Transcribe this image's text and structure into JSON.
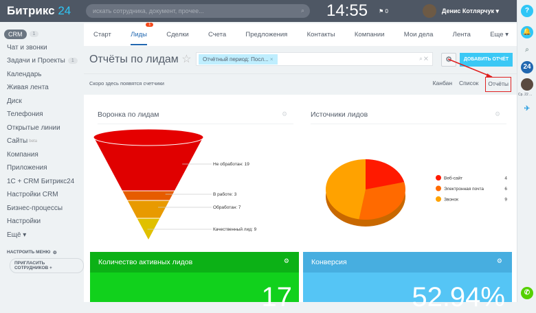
{
  "topbar": {
    "logo_main": "Битрикс",
    "logo_num": "24",
    "search_placeholder": "искать сотрудника, документ, прочее...",
    "time": "14:55",
    "flag_count": "0",
    "user": "Денис Котлярчук ▾"
  },
  "rightbar": {
    "help": "?",
    "b24": "24",
    "date": "Ср. 22 ..."
  },
  "sidebar": {
    "crm": "CRM",
    "crm_badge": "1",
    "items": [
      {
        "label": "Чат и звонки"
      },
      {
        "label": "Задачи и Проекты",
        "badge": "1"
      },
      {
        "label": "Календарь"
      },
      {
        "label": "Живая лента"
      },
      {
        "label": "Диск"
      },
      {
        "label": "Телефония"
      },
      {
        "label": "Открытые линии"
      },
      {
        "label": "Сайты",
        "sup": "beta"
      },
      {
        "label": "Компания"
      },
      {
        "label": "Приложения"
      },
      {
        "label": "1С + CRM Битрикс24"
      },
      {
        "label": "Настройки CRM"
      },
      {
        "label": "Бизнес-процессы"
      },
      {
        "label": "Настройки"
      },
      {
        "label": "Ещё ▾"
      }
    ],
    "configure": "НАСТРОИТЬ МЕНЮ",
    "invite": "ПРИГЛАСИТЬ СОТРУДНИКОВ"
  },
  "nav": {
    "tabs": [
      "Старт",
      "Лиды",
      "Сделки",
      "Счета",
      "Предложения",
      "Контакты",
      "Компании",
      "Мои дела",
      "Лента",
      "Еще ▾"
    ],
    "active": "Лиды",
    "leads_badge": "1"
  },
  "page": {
    "title": "Отчёты по лидам",
    "filter_chip": "Отчётный период: Посл...",
    "add_report": "ДОБАВИТЬ ОТЧЁТ",
    "counters_note": "Скоро здесь появятся счетчики",
    "views": [
      "Канбан",
      "Список",
      "Отчёты"
    ]
  },
  "widgets": {
    "funnel_title": "Воронка по лидам",
    "sources_title": "Источники лидов",
    "active_title": "Количество активных лидов",
    "active_value": "17",
    "conv_title": "Конверсия",
    "conv_value": "52.94%"
  },
  "chart_data": [
    {
      "type": "funnel",
      "title": "Воронка по лидам",
      "categories": [
        "Не обработан",
        "В работе",
        "Обработан",
        "Качественный лид"
      ],
      "values": [
        19,
        3,
        7,
        9
      ],
      "colors": [
        "#e00000",
        "#e65c00",
        "#e89a00",
        "#e0c000"
      ]
    },
    {
      "type": "pie",
      "title": "Источники лидов",
      "categories": [
        "Веб-сайт",
        "Электронная почта",
        "Звонок"
      ],
      "values": [
        4,
        6,
        9
      ],
      "colors": [
        "#ff1a00",
        "#ff6a00",
        "#ffa200"
      ],
      "legend": "right"
    }
  ]
}
